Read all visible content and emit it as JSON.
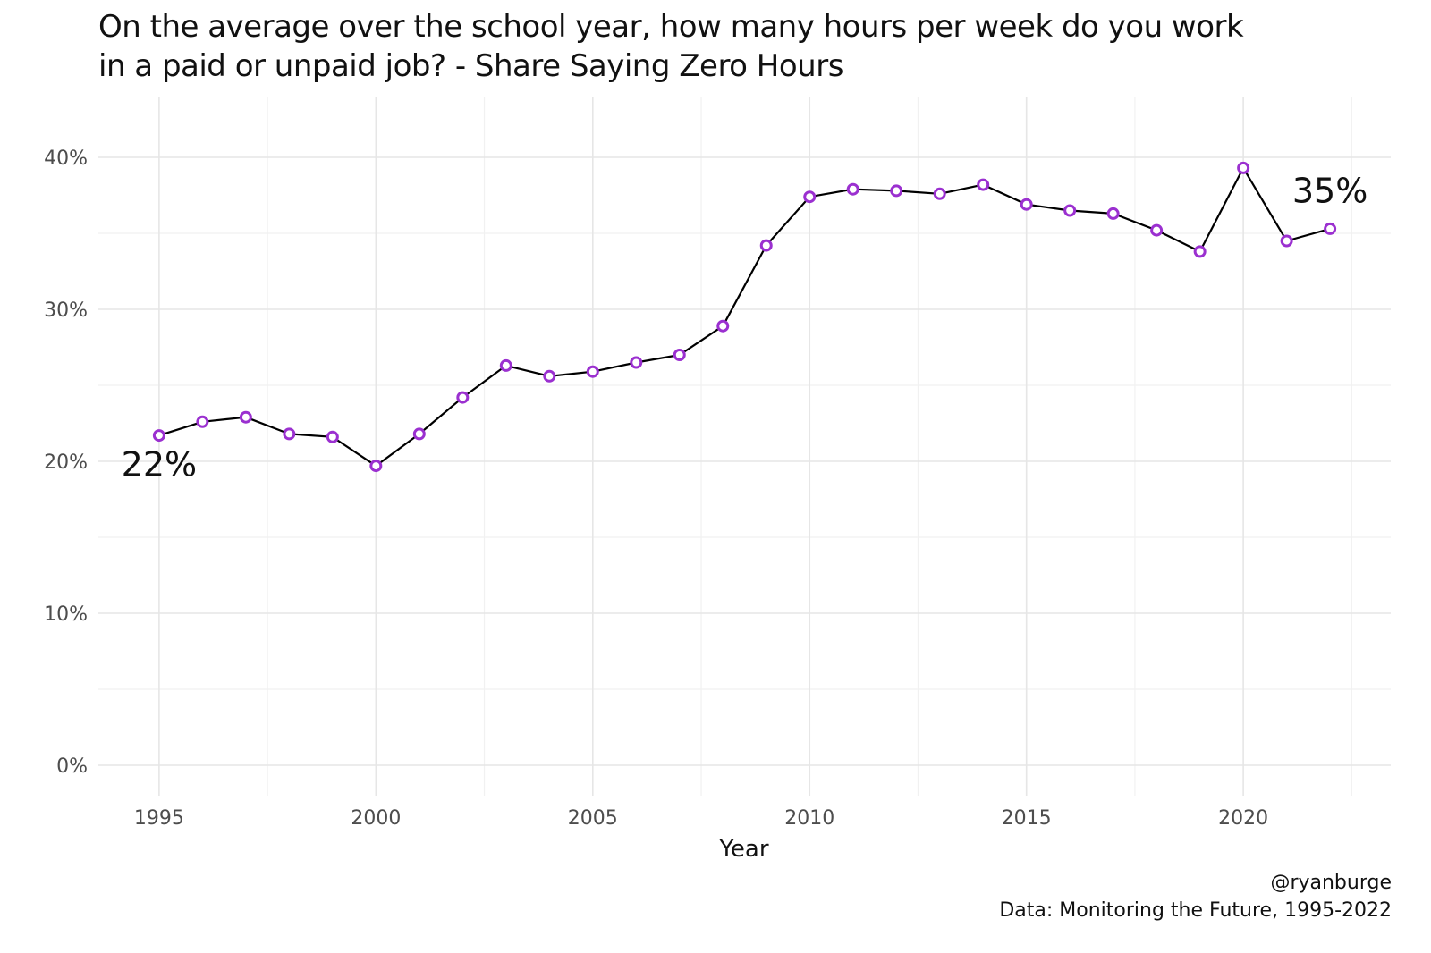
{
  "title_lines": [
    "On the average over the school year, how many hours per week do you work",
    "in a paid or unpaid job? - Share Saying Zero Hours"
  ],
  "caption": {
    "author": "@ryanburge",
    "source": "Data: Monitoring the Future, 1995-2022"
  },
  "colors": {
    "line": "#000000",
    "point_stroke": "#9b30d0",
    "point_fill": "#ffffff",
    "grid_major": "#e6e6e6",
    "grid_minor": "#f1f1f1",
    "tick_text": "#4d4d4d"
  },
  "chart_data": {
    "type": "line",
    "title": "On the average over the school year, how many hours per week do you work in a paid or unpaid job? - Share Saying Zero Hours",
    "xlabel": "Year",
    "ylabel": "",
    "x": [
      1995,
      1996,
      1997,
      1998,
      1999,
      2000,
      2001,
      2002,
      2003,
      2004,
      2005,
      2006,
      2007,
      2008,
      2009,
      2010,
      2011,
      2012,
      2013,
      2014,
      2015,
      2016,
      2017,
      2018,
      2019,
      2020,
      2021,
      2022
    ],
    "series": [
      {
        "values": [
          21.7,
          22.6,
          22.9,
          21.8,
          21.6,
          19.7,
          21.8,
          24.2,
          26.3,
          25.6,
          25.9,
          26.5,
          27.0,
          28.9,
          34.2,
          37.4,
          37.9,
          37.8,
          37.6,
          38.2,
          36.9,
          36.5,
          36.3,
          35.2,
          33.8,
          39.3,
          34.5,
          35.3
        ]
      }
    ],
    "xlim": [
      1993.6,
      2023.4
    ],
    "ylim": [
      -2.0,
      44.0
    ],
    "xticks": [
      1995,
      2000,
      2005,
      2010,
      2015,
      2020
    ],
    "xtick_labels": [
      "1995",
      "2000",
      "2005",
      "2010",
      "2015",
      "2020"
    ],
    "yticks": [
      0,
      10,
      20,
      30,
      40
    ],
    "ytick_labels": [
      "0%",
      "10%",
      "20%",
      "30%",
      "40%"
    ],
    "grid": true,
    "annotations": [
      {
        "text": "22%",
        "x": 1995,
        "y": 19.8
      },
      {
        "text": "35%",
        "x": 2022,
        "y": 37.8
      }
    ]
  }
}
